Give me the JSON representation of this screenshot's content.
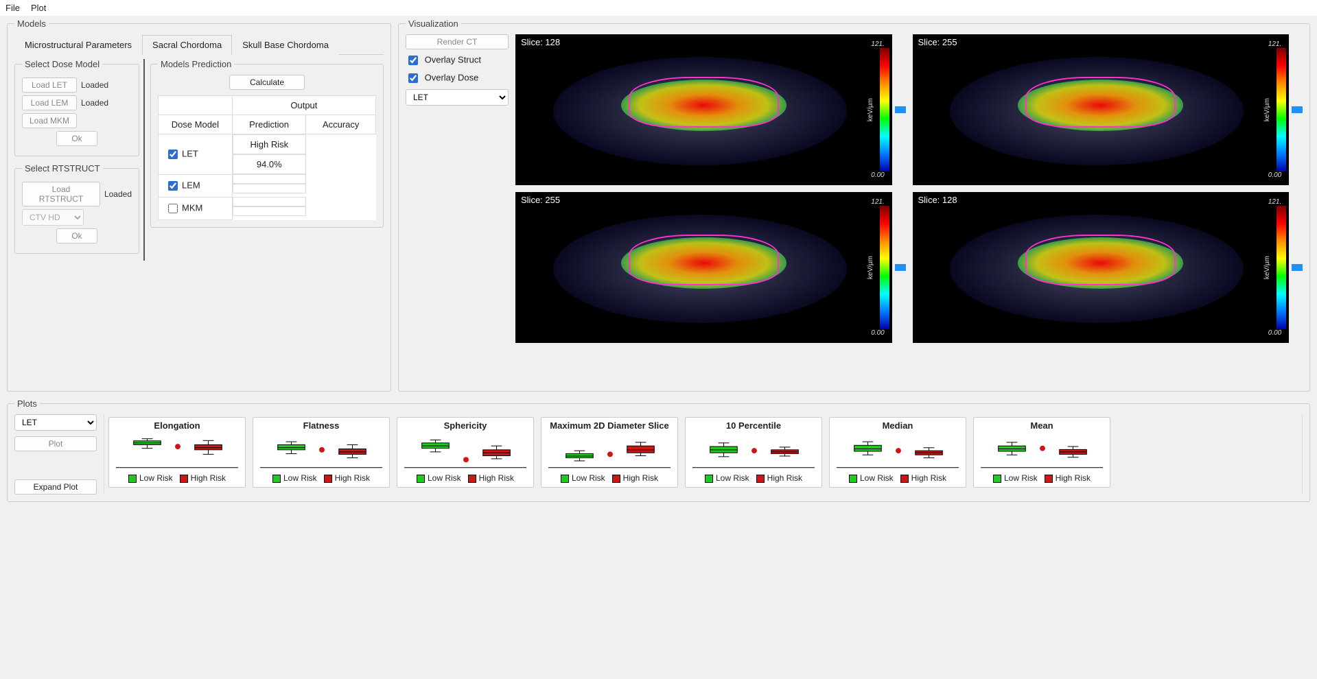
{
  "menu": {
    "file": "File",
    "plot": "Plot"
  },
  "models": {
    "legend": "Models",
    "tabs": [
      "Microstructural Parameters",
      "Sacral Chordoma",
      "Skull Base Chordoma"
    ],
    "active_tab": 1,
    "dose_panel": {
      "legend": "Select Dose Model",
      "rows": [
        {
          "btn": "Load LET",
          "status": "Loaded"
        },
        {
          "btn": "Load LEM",
          "status": "Loaded"
        },
        {
          "btn": "Load MKM",
          "status": ""
        }
      ],
      "ok": "Ok"
    },
    "rtstruct_panel": {
      "legend": "Select RTSTRUCT",
      "btn": "Load RTSTRUCT",
      "status": "Loaded",
      "select_value": "CTV HD",
      "ok": "Ok"
    },
    "prediction_panel": {
      "legend": "Models Prediction",
      "calc": "Calculate",
      "output_header": "Output",
      "cols": [
        "Dose Model",
        "Prediction",
        "Accuracy"
      ],
      "rows": [
        {
          "checked": true,
          "model": "LET",
          "pred": "High Risk",
          "acc": "94.0%"
        },
        {
          "checked": true,
          "model": "LEM",
          "pred": "",
          "acc": ""
        },
        {
          "checked": false,
          "model": "MKM",
          "pred": "",
          "acc": ""
        }
      ]
    }
  },
  "viz": {
    "legend": "Visualization",
    "render_btn": "Render CT",
    "overlay_struct": "Overlay Struct",
    "overlay_dose": "Overlay Dose",
    "mode_select": "LET",
    "colorbar": {
      "max": "121.",
      "min": "0.00",
      "unit": "keV/µm"
    },
    "slices": [
      {
        "label": "Slice: 128"
      },
      {
        "label": "Slice: 255"
      },
      {
        "label": "Slice: 255"
      },
      {
        "label": "Slice: 128"
      }
    ]
  },
  "plots": {
    "legend": "Plots",
    "mode_select": "LET",
    "plot_btn": "Plot",
    "expand_btn": "Expand Plot",
    "legend_low": "Low Risk",
    "legend_high": "High Risk",
    "low_color": "#1ecb1e",
    "high_color": "#d01515",
    "cards": [
      {
        "title": "Elongation",
        "low": {
          "q1": 0.72,
          "med": 0.78,
          "q3": 0.85,
          "lo": 0.6,
          "hi": 0.92
        },
        "high": {
          "q1": 0.55,
          "med": 0.62,
          "q3": 0.72,
          "lo": 0.4,
          "hi": 0.86
        },
        "outlier_y": 0.66
      },
      {
        "title": "Flatness",
        "low": {
          "q1": 0.55,
          "med": 0.62,
          "q3": 0.72,
          "lo": 0.42,
          "hi": 0.82
        },
        "high": {
          "q1": 0.4,
          "med": 0.48,
          "q3": 0.58,
          "lo": 0.28,
          "hi": 0.72
        },
        "outlier_y": 0.55
      },
      {
        "title": "Sphericity",
        "low": {
          "q1": 0.6,
          "med": 0.68,
          "q3": 0.78,
          "lo": 0.48,
          "hi": 0.88
        },
        "high": {
          "q1": 0.35,
          "med": 0.45,
          "q3": 0.55,
          "lo": 0.25,
          "hi": 0.68
        },
        "outlier_y": 0.22
      },
      {
        "title": "Maximum 2D Diameter Slice",
        "low": {
          "q1": 0.28,
          "med": 0.34,
          "q3": 0.42,
          "lo": 0.18,
          "hi": 0.52
        },
        "high": {
          "q1": 0.45,
          "med": 0.55,
          "q3": 0.68,
          "lo": 0.35,
          "hi": 0.8
        },
        "outlier_y": 0.4
      },
      {
        "title": "10 Percentile",
        "low": {
          "q1": 0.45,
          "med": 0.55,
          "q3": 0.66,
          "lo": 0.32,
          "hi": 0.78
        },
        "high": {
          "q1": 0.42,
          "med": 0.48,
          "q3": 0.55,
          "lo": 0.34,
          "hi": 0.64
        },
        "outlier_y": 0.52
      },
      {
        "title": "Median",
        "low": {
          "q1": 0.5,
          "med": 0.58,
          "q3": 0.7,
          "lo": 0.38,
          "hi": 0.82
        },
        "high": {
          "q1": 0.38,
          "med": 0.45,
          "q3": 0.52,
          "lo": 0.28,
          "hi": 0.62
        },
        "outlier_y": 0.52
      },
      {
        "title": "Mean",
        "low": {
          "q1": 0.5,
          "med": 0.58,
          "q3": 0.68,
          "lo": 0.38,
          "hi": 0.8
        },
        "high": {
          "q1": 0.4,
          "med": 0.48,
          "q3": 0.56,
          "lo": 0.3,
          "hi": 0.66
        },
        "outlier_y": 0.6
      }
    ]
  }
}
